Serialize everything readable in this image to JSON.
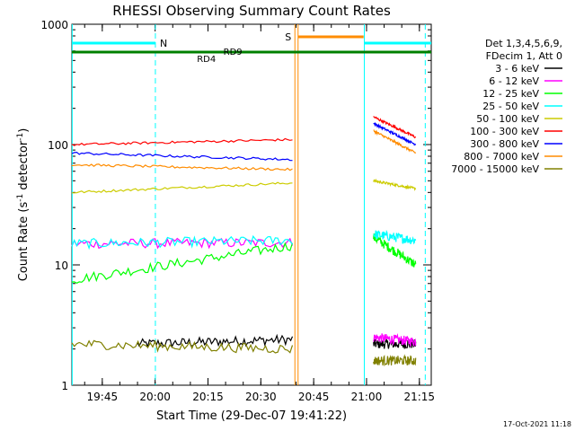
{
  "chart_data": {
    "type": "line",
    "title": "RHESSI Observing Summary Count Rates",
    "xlabel": "Start Time (29-Dec-07 19:41:22)",
    "ylabel_main": "Count Rate (s",
    "ylabel_sup1": "-1",
    "ylabel_mid": " detector",
    "ylabel_sup2": "-1",
    "ylabel_end": ")",
    "yscale": "log",
    "ylim": [
      1,
      1000
    ],
    "xlim_minutes": [
      -5,
      97
    ],
    "x_ticks": [
      {
        "minutes": 3.63,
        "label": "19:45"
      },
      {
        "minutes": 18.63,
        "label": "20:00"
      },
      {
        "minutes": 33.63,
        "label": "20:15"
      },
      {
        "minutes": 48.63,
        "label": "20:30"
      },
      {
        "minutes": 63.63,
        "label": "20:45"
      },
      {
        "minutes": 78.63,
        "label": "21:00"
      },
      {
        "minutes": 93.63,
        "label": "21:15"
      }
    ],
    "y_ticks": [
      {
        "value": 1,
        "label": "1"
      },
      {
        "value": 10,
        "label": "10"
      },
      {
        "value": 100,
        "label": "100"
      },
      {
        "value": 1000,
        "label": "1000"
      }
    ],
    "legend_header": [
      "Det 1,3,4,5,6,9,",
      "FDecim 1, Att 0"
    ],
    "series": [
      {
        "name": "3 - 6 keV",
        "color": "#000000",
        "seg1": {
          "t0": 13.6,
          "t1": 57.6,
          "v0": 2.2,
          "v1": 2.4
        },
        "seg2": {
          "t0": 80.6,
          "t1": 92.6,
          "v0": 2.2,
          "v1": 2.2
        }
      },
      {
        "name": "6 - 12 keV",
        "color": "#ff00ff",
        "seg1": {
          "t0": -5,
          "t1": 57.6,
          "v0": 15,
          "v1": 15.3
        },
        "seg2": {
          "t0": 80.6,
          "t1": 92.6,
          "v0": 2.5,
          "v1": 2.3
        }
      },
      {
        "name": "12 - 25 keV",
        "color": "#00ff00",
        "seg1": {
          "t0": -5,
          "t1": 57.6,
          "v0": 7.5,
          "v1": 14.5
        },
        "seg2": {
          "t0": 80.6,
          "t1": 92.6,
          "v0": 17,
          "v1": 10
        }
      },
      {
        "name": "25 - 50 keV",
        "color": "#00ffff",
        "seg1": {
          "t0": -5,
          "t1": 57.6,
          "v0": 15,
          "v1": 16
        },
        "seg2": {
          "t0": 80.6,
          "t1": 92.6,
          "v0": 18,
          "v1": 16
        }
      },
      {
        "name": "50 - 100 keV",
        "color": "#cccc00",
        "seg1": {
          "t0": -5,
          "t1": 57.6,
          "v0": 40,
          "v1": 48
        },
        "seg2": {
          "t0": 80.6,
          "t1": 92.6,
          "v0": 50,
          "v1": 43
        }
      },
      {
        "name": "100 - 300 keV",
        "color": "#ff0000",
        "seg1": {
          "t0": -5,
          "t1": 57.6,
          "v0": 100,
          "v1": 110
        },
        "seg2": {
          "t0": 80.6,
          "t1": 92.6,
          "v0": 170,
          "v1": 115
        }
      },
      {
        "name": "300 - 800 keV",
        "color": "#0000ff",
        "seg1": {
          "t0": -5,
          "t1": 57.6,
          "v0": 85,
          "v1": 75
        },
        "seg2": {
          "t0": 80.6,
          "t1": 92.6,
          "v0": 150,
          "v1": 100
        }
      },
      {
        "name": "800 - 7000 keV",
        "color": "#ff8c00",
        "seg1": {
          "t0": -5,
          "t1": 57.6,
          "v0": 68,
          "v1": 62
        },
        "seg2": {
          "t0": 80.6,
          "t1": 92.6,
          "v0": 130,
          "v1": 85
        }
      },
      {
        "name": "7000 - 15000 keV",
        "color": "#808000",
        "seg1": {
          "t0": -5,
          "t1": 57.6,
          "v0": 2.2,
          "v1": 2.0
        },
        "seg2": {
          "t0": 80.6,
          "t1": 92.6,
          "v0": 1.6,
          "v1": 1.6
        }
      }
    ],
    "annotations": [
      {
        "label": "N",
        "color": "#00ffff"
      },
      {
        "label": "S",
        "color": "#ff8c00"
      },
      {
        "label": "RD4",
        "color": "#008000"
      },
      {
        "label": "RD9",
        "color": "#008000"
      }
    ],
    "footer": "17-Oct-2021 11:18"
  }
}
